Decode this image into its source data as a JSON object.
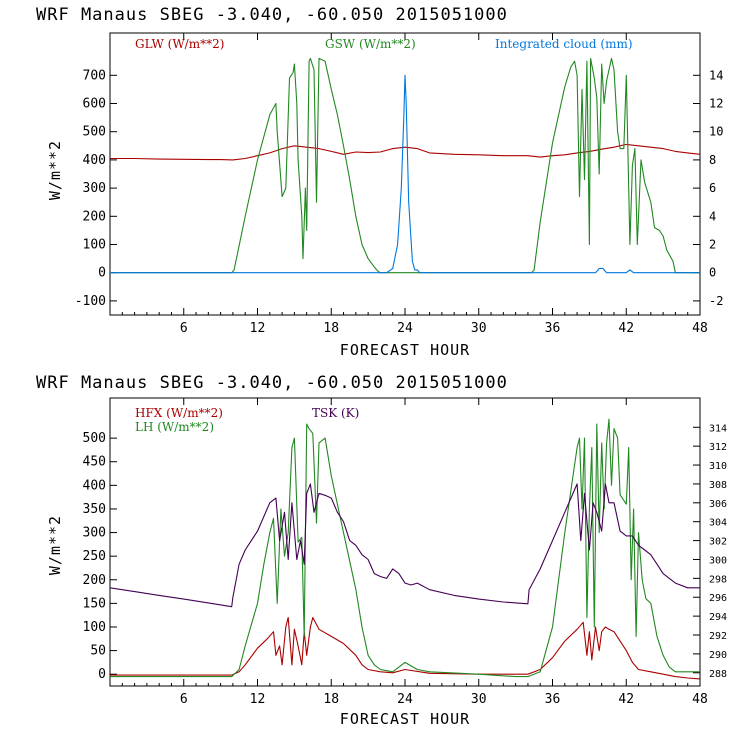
{
  "chart_data": [
    {
      "type": "line",
      "header": "WRF   Manaus SBEG   -3.040, -60.050  2015051000",
      "xlabel": "FORECAST HOUR",
      "ylabel": "W/m**2",
      "xlim": [
        0,
        48
      ],
      "xticks": [
        6,
        12,
        18,
        24,
        30,
        36,
        42,
        48
      ],
      "ylim": [
        -150,
        850
      ],
      "yticks": [
        -100,
        0,
        100,
        200,
        300,
        400,
        500,
        600,
        700
      ],
      "y2lim": [
        -3,
        17
      ],
      "y2ticks": [
        -2,
        0,
        2,
        4,
        6,
        8,
        10,
        12,
        14
      ],
      "grid": false,
      "legend_placement": "top",
      "series": [
        {
          "name": "GLW (W/m**2)",
          "color": "#aa0000",
          "axis": "left",
          "x": [
            0,
            2,
            4,
            6,
            8,
            9,
            10,
            11,
            12,
            13,
            14,
            15,
            16,
            17,
            18,
            19,
            20,
            21,
            22,
            23,
            24,
            25,
            26,
            28,
            30,
            32,
            34,
            35,
            36,
            37,
            38,
            39,
            40,
            41,
            42,
            43,
            44,
            45,
            46,
            47,
            48
          ],
          "y": [
            405,
            405,
            403,
            402,
            401,
            401,
            400,
            405,
            415,
            425,
            440,
            450,
            445,
            440,
            430,
            420,
            428,
            426,
            428,
            440,
            445,
            440,
            425,
            420,
            418,
            415,
            415,
            410,
            415,
            418,
            425,
            430,
            438,
            445,
            455,
            450,
            445,
            440,
            430,
            425,
            420
          ]
        },
        {
          "name": "GSW (W/m**2)",
          "color": "#228822",
          "axis": "left",
          "x": [
            0,
            9.9,
            10.1,
            11,
            12,
            13,
            13.5,
            13.6,
            14,
            14.3,
            14.6,
            14.9,
            15,
            15.2,
            15.3,
            15.6,
            15.7,
            15.9,
            16,
            16.2,
            16.3,
            16.6,
            16.8,
            17,
            17.5,
            18,
            18.5,
            19,
            19.5,
            20,
            20.5,
            21,
            21.5,
            21.8,
            22,
            34.3,
            34.5,
            35,
            36,
            37,
            37.5,
            37.8,
            38,
            38.2,
            38.4,
            38.6,
            38.8,
            39,
            39.1,
            39.4,
            39.6,
            39.8,
            40,
            40.2,
            40.4,
            40.8,
            41,
            41.3,
            41.5,
            41.8,
            42,
            42.3,
            42.5,
            42.7,
            42.9,
            43.2,
            43.5,
            44,
            44.3,
            44.7,
            45,
            45.3,
            45.8,
            46,
            48
          ],
          "y": [
            0,
            0,
            10,
            200,
            400,
            560,
            600,
            500,
            270,
            300,
            690,
            710,
            740,
            600,
            400,
            200,
            50,
            300,
            150,
            750,
            760,
            720,
            250,
            760,
            750,
            650,
            560,
            450,
            330,
            200,
            100,
            50,
            20,
            5,
            0,
            0,
            10,
            180,
            460,
            660,
            730,
            750,
            700,
            270,
            650,
            330,
            750,
            100,
            760,
            690,
            620,
            350,
            740,
            600,
            680,
            760,
            720,
            500,
            440,
            440,
            700,
            100,
            380,
            440,
            100,
            400,
            320,
            250,
            160,
            150,
            130,
            80,
            40,
            0,
            0
          ]
        },
        {
          "name": "Integrated cloud (mm)",
          "color": "#0077dd",
          "axis": "right",
          "x": [
            0,
            22.5,
            23,
            23.4,
            23.7,
            23.9,
            24,
            24.1,
            24.3,
            24.6,
            24.8,
            25,
            25.2,
            26,
            39.5,
            39.8,
            40.1,
            40.4,
            42,
            42.3,
            42.6,
            48
          ],
          "y": [
            0,
            0,
            0.3,
            2,
            6,
            11,
            14,
            12,
            5,
            0.8,
            0.2,
            0.2,
            0,
            0,
            0,
            0.3,
            0.3,
            0,
            0,
            0.2,
            0,
            0
          ]
        }
      ]
    },
    {
      "type": "line",
      "header": "WRF   Manaus SBEG   -3.040, -60.050  2015051000",
      "xlabel": "FORECAST HOUR",
      "ylabel": "W/m**2",
      "xlim": [
        0,
        48
      ],
      "xticks": [
        6,
        12,
        18,
        24,
        30,
        36,
        42,
        48
      ],
      "ylim": [
        -25,
        585
      ],
      "yticks": [
        0,
        50,
        100,
        150,
        200,
        250,
        300,
        350,
        400,
        450,
        500
      ],
      "y2lim": [
        286.6,
        317.1
      ],
      "y2ticks": [
        288,
        290,
        292,
        294,
        296,
        298,
        300,
        302,
        304,
        306,
        308,
        310,
        312,
        314
      ],
      "grid": false,
      "legend_placement": "top-left",
      "series": [
        {
          "name": "HFX (W/m**2)",
          "color": "#aa0000",
          "axis": "left",
          "x": [
            0,
            4,
            8,
            9.9,
            10.5,
            11,
            12,
            12.8,
            13.3,
            13.5,
            13.8,
            14,
            14.3,
            14.5,
            14.8,
            15,
            15.3,
            15.6,
            15.8,
            16,
            16.3,
            16.5,
            17,
            18,
            19,
            20,
            20.5,
            21,
            22,
            23,
            24,
            26,
            30,
            33,
            34,
            35,
            36,
            37,
            38,
            38.5,
            38.8,
            39,
            39.2,
            39.5,
            39.8,
            40,
            40.3,
            40.6,
            41,
            41.5,
            42,
            42.5,
            43,
            44,
            45,
            46,
            47,
            48
          ],
          "y": [
            -2,
            -2,
            -2,
            -2,
            5,
            20,
            55,
            75,
            90,
            40,
            60,
            20,
            100,
            120,
            20,
            95,
            60,
            20,
            90,
            40,
            100,
            120,
            95,
            80,
            65,
            40,
            20,
            10,
            5,
            3,
            10,
            2,
            0,
            0,
            0,
            10,
            35,
            70,
            95,
            110,
            40,
            90,
            30,
            100,
            50,
            90,
            100,
            95,
            90,
            70,
            50,
            25,
            10,
            5,
            0,
            -5,
            -8,
            -10
          ]
        },
        {
          "name": "LH (W/m**2)",
          "color": "#228822",
          "axis": "left",
          "x": [
            0,
            4,
            8,
            9.9,
            10.5,
            11,
            12,
            12.5,
            13,
            13.3,
            13.6,
            13.9,
            14.2,
            14.5,
            14.8,
            15,
            15.3,
            15.6,
            15.8,
            16,
            16.2,
            16.5,
            16.8,
            17,
            17.5,
            18,
            19,
            20,
            20.5,
            21,
            21.5,
            22,
            23,
            24,
            25,
            26,
            30,
            33,
            34,
            35,
            36,
            37,
            38,
            38.2,
            38.4,
            38.6,
            38.8,
            39,
            39.2,
            39.4,
            39.6,
            39.8,
            40,
            40.2,
            40.4,
            40.6,
            40.8,
            41,
            41.3,
            41.5,
            42,
            42.2,
            42.4,
            42.6,
            42.8,
            43,
            43.3,
            43.6,
            44,
            44.5,
            45,
            45.5,
            46,
            47,
            48
          ],
          "y": [
            -5,
            -5,
            -5,
            -5,
            10,
            60,
            150,
            230,
            300,
            330,
            150,
            350,
            250,
            300,
            480,
            500,
            280,
            290,
            80,
            530,
            520,
            510,
            320,
            490,
            500,
            420,
            300,
            180,
            100,
            40,
            20,
            10,
            5,
            25,
            10,
            5,
            0,
            -5,
            -5,
            5,
            100,
            300,
            480,
            500,
            350,
            500,
            120,
            350,
            480,
            100,
            530,
            300,
            490,
            350,
            490,
            540,
            400,
            520,
            500,
            380,
            360,
            480,
            200,
            350,
            80,
            300,
            200,
            160,
            150,
            80,
            40,
            15,
            5,
            5,
            5
          ]
        },
        {
          "name": "TSK (K)",
          "color": "#440055",
          "axis": "right",
          "x": [
            0,
            2,
            4,
            6,
            8,
            9.9,
            10,
            10.5,
            11,
            12,
            13,
            13.5,
            13.8,
            14.2,
            14.5,
            14.8,
            15.2,
            15.5,
            15.8,
            16,
            16.3,
            16.6,
            17,
            17.5,
            18,
            18.5,
            19,
            19.5,
            20,
            20.5,
            21,
            21.5,
            22,
            22.5,
            23,
            23.5,
            24,
            24.5,
            25,
            26,
            28,
            30,
            32,
            34,
            34.1,
            35,
            36,
            37,
            38,
            38.3,
            38.6,
            39,
            39.3,
            39.6,
            40,
            40.3,
            40.6,
            41,
            41.5,
            42,
            42.5,
            43,
            43.5,
            44,
            44.5,
            45,
            46,
            47,
            48
          ],
          "y": [
            297,
            296.6,
            296.2,
            295.8,
            295.4,
            295,
            296,
            299.5,
            301,
            303,
            306,
            306.5,
            302,
            305,
            300,
            306,
            300,
            302,
            299.5,
            307,
            308,
            305,
            307,
            306.8,
            306.5,
            305,
            304,
            302,
            301.5,
            300.5,
            300,
            298.5,
            298.2,
            298,
            299,
            298.5,
            297.5,
            297.3,
            297.5,
            296.8,
            296.2,
            295.8,
            295.5,
            295.3,
            296.8,
            299,
            302,
            305,
            308,
            302,
            307,
            301,
            306,
            305,
            303,
            308,
            306,
            306,
            303,
            302.5,
            302.5,
            301.5,
            301,
            300.5,
            299.5,
            298.5,
            297.5,
            297,
            297
          ]
        }
      ]
    }
  ]
}
